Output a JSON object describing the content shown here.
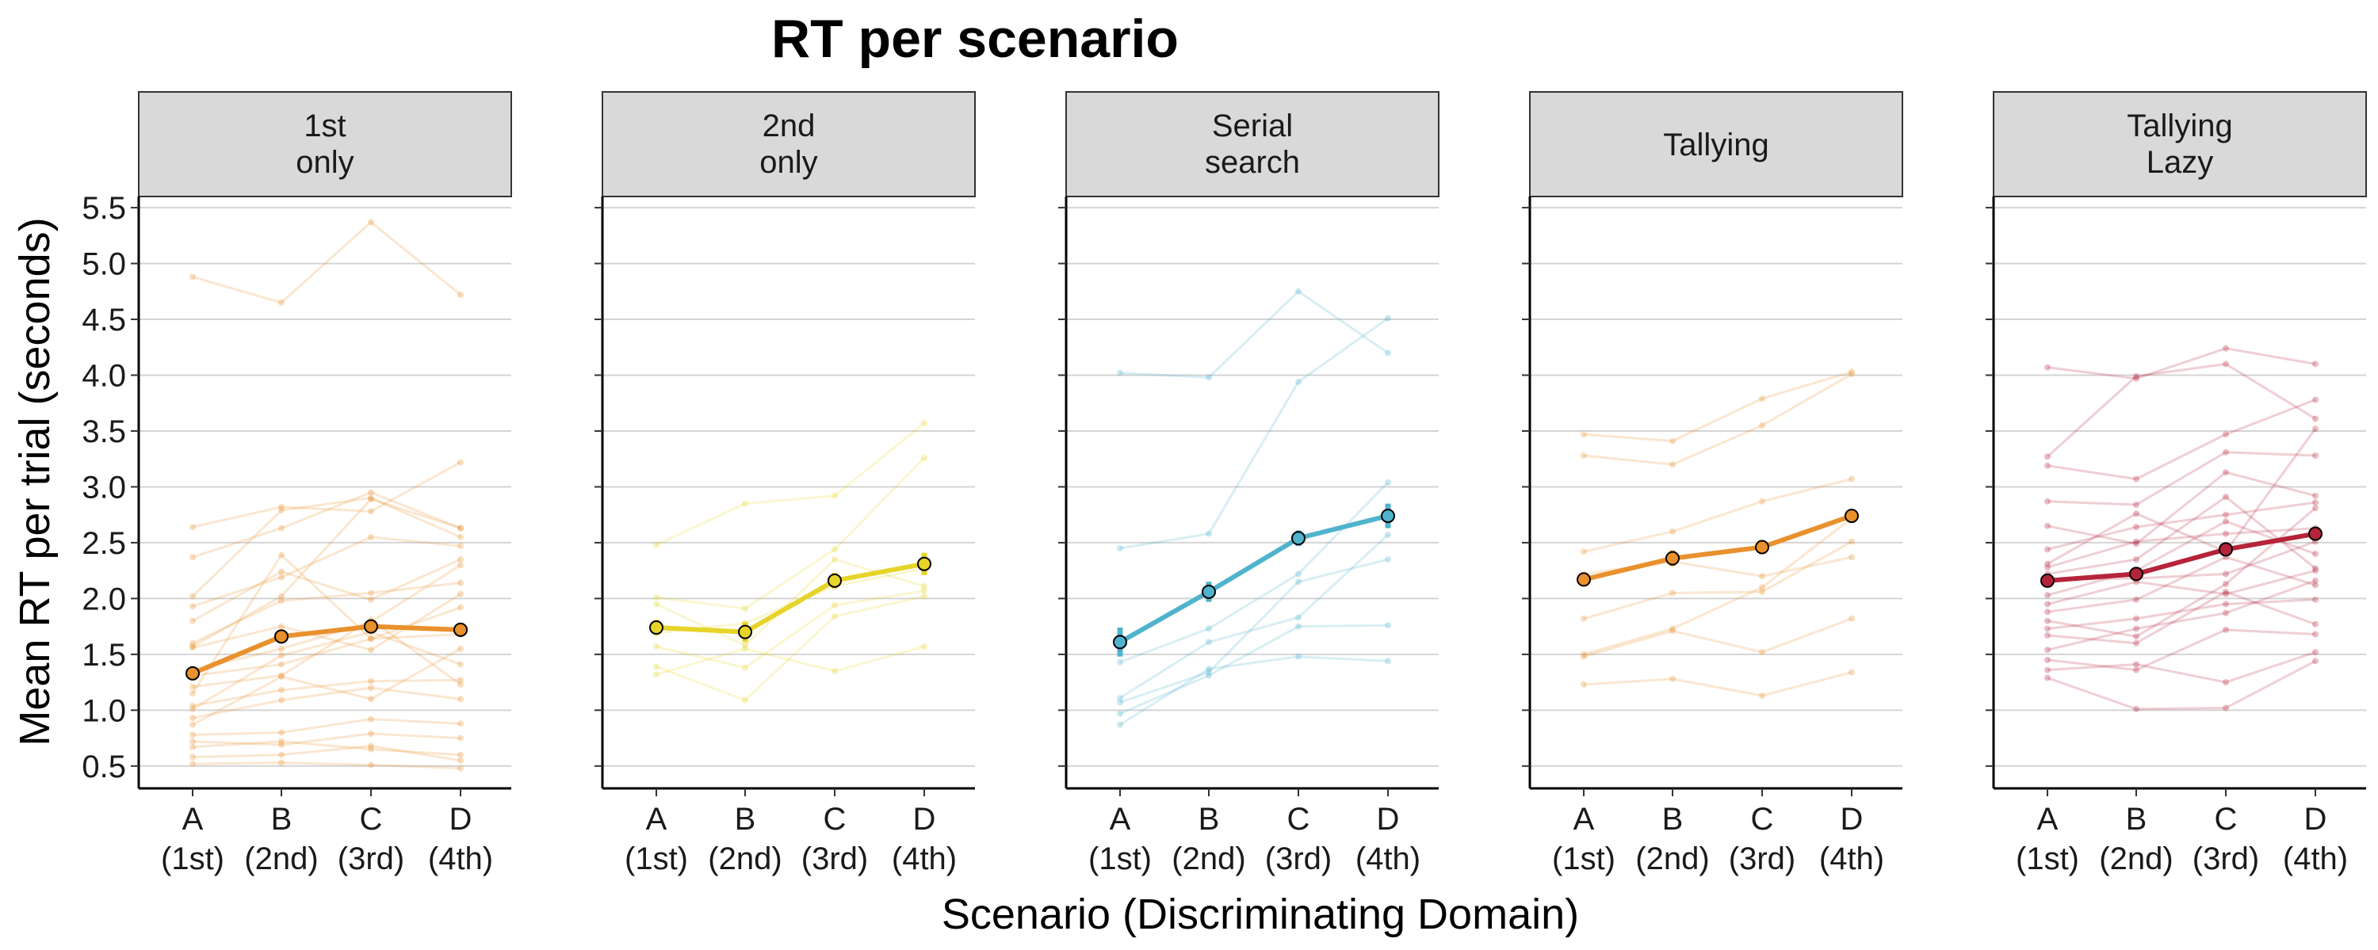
{
  "chart_data": {
    "type": "line",
    "title": "RT per scenario",
    "xlabel": "Scenario (Discriminating Domain)",
    "ylabel": "Mean RT per trial (seconds)",
    "ylim": [
      0.3,
      5.6
    ],
    "yticks": [
      "0.5",
      "1.0",
      "1.5",
      "2.0",
      "2.5",
      "3.0",
      "3.5",
      "4.0",
      "4.5",
      "5.0",
      "5.5"
    ],
    "categories": [
      "A\n(1st)",
      "B\n(2nd)",
      "C\n(3rd)",
      "D\n(4th)"
    ],
    "grid": "horizontal",
    "legend": "none",
    "panels": [
      {
        "label": "1st\nonly",
        "color": "#E8912D",
        "mean": [
          1.33,
          1.66,
          1.75,
          1.72
        ],
        "error": [
          0.06,
          0.05,
          0.06,
          0.06
        ],
        "individuals": [
          [
            4.88,
            4.65,
            5.37,
            4.72
          ],
          [
            2.64,
            2.82,
            2.78,
            3.22
          ],
          [
            2.37,
            2.63,
            2.95,
            2.63
          ],
          [
            2.02,
            2.79,
            2.9,
            2.55
          ],
          [
            1.93,
            2.19,
            2.55,
            2.47
          ],
          [
            1.8,
            2.24,
            1.99,
            2.35
          ],
          [
            1.6,
            1.98,
            2.05,
            2.14
          ],
          [
            1.57,
            2.02,
            2.89,
            2.63
          ],
          [
            1.56,
            1.75,
            1.54,
            2.04
          ],
          [
            1.36,
            1.55,
            1.79,
            2.3
          ],
          [
            1.31,
            1.41,
            1.64,
            1.92
          ],
          [
            1.21,
            1.31,
            1.81,
            1.23
          ],
          [
            1.15,
            2.39,
            1.64,
            1.68
          ],
          [
            1.04,
            1.18,
            1.26,
            1.27
          ],
          [
            1.01,
            1.49,
            1.7,
            1.41
          ],
          [
            0.93,
            1.09,
            1.2,
            1.1
          ],
          [
            0.87,
            1.3,
            1.1,
            1.55
          ],
          [
            0.78,
            0.8,
            0.92,
            0.88
          ],
          [
            0.72,
            0.69,
            0.79,
            0.75
          ],
          [
            0.67,
            0.72,
            0.65,
            0.6
          ],
          [
            0.58,
            0.6,
            0.68,
            0.55
          ],
          [
            0.52,
            0.53,
            0.51,
            0.48
          ]
        ]
      },
      {
        "label": "2nd\nonly",
        "color": "#E6D42A",
        "mean": [
          1.74,
          1.7,
          2.16,
          2.31
        ],
        "error": [
          0.07,
          0.09,
          0.07,
          0.1
        ],
        "individuals": [
          [
            2.48,
            2.85,
            2.92,
            3.57
          ],
          [
            2.01,
            1.91,
            2.44,
            3.26
          ],
          [
            1.95,
            1.58,
            2.35,
            2.11
          ],
          [
            1.69,
            1.78,
            2.11,
            2.27
          ],
          [
            1.57,
            1.38,
            1.94,
            2.07
          ],
          [
            1.39,
            1.09,
            1.84,
            2.02
          ],
          [
            1.32,
            1.55,
            1.35,
            1.57
          ]
        ]
      },
      {
        "label": "Serial\nsearch",
        "color": "#4FB3CC",
        "mean": [
          1.61,
          2.06,
          2.54,
          2.74
        ],
        "error": [
          0.13,
          0.09,
          0.07,
          0.11
        ],
        "individuals": [
          [
            4.02,
            3.98,
            4.75,
            4.2
          ],
          [
            2.45,
            2.58,
            3.94,
            4.51
          ],
          [
            1.43,
            1.73,
            2.22,
            3.04
          ],
          [
            1.11,
            1.61,
            1.83,
            2.57
          ],
          [
            1.07,
            1.34,
            2.15,
            2.35
          ],
          [
            0.97,
            1.31,
            1.75,
            1.76
          ],
          [
            0.87,
            1.37,
            1.48,
            1.44
          ]
        ]
      },
      {
        "label": "Tallying",
        "color": "#E8912D",
        "mean": [
          2.17,
          2.36,
          2.46,
          2.74
        ],
        "error": [
          0.05,
          0.07,
          0.04,
          0.05
        ],
        "individuals": [
          [
            3.47,
            3.41,
            3.79,
            4.03
          ],
          [
            3.28,
            3.2,
            3.55,
            4.01
          ],
          [
            2.42,
            2.6,
            2.87,
            3.07
          ],
          [
            2.22,
            2.33,
            2.2,
            2.37
          ],
          [
            1.82,
            2.05,
            2.06,
            2.51
          ],
          [
            1.5,
            1.73,
            2.1,
            2.72
          ],
          [
            1.48,
            1.71,
            1.52,
            1.82
          ],
          [
            1.23,
            1.28,
            1.13,
            1.34
          ]
        ]
      },
      {
        "label": "Tallying\nLazy",
        "color": "#B5243A",
        "mean": [
          2.16,
          2.22,
          2.44,
          2.58
        ],
        "error": [
          0.04,
          0.04,
          0.04,
          0.05
        ],
        "individuals": [
          [
            4.07,
            3.97,
            4.24,
            4.1
          ],
          [
            3.27,
            3.99,
            4.1,
            3.61
          ],
          [
            3.19,
            3.07,
            3.47,
            3.78
          ],
          [
            2.87,
            2.84,
            3.31,
            3.28
          ],
          [
            2.65,
            2.49,
            3.13,
            2.92
          ],
          [
            2.44,
            2.64,
            2.75,
            2.86
          ],
          [
            2.31,
            2.76,
            2.42,
            3.52
          ],
          [
            2.28,
            2.51,
            2.58,
            2.63
          ],
          [
            2.22,
            2.35,
            2.91,
            2.27
          ],
          [
            2.17,
            2.18,
            2.22,
            2.51
          ],
          [
            2.03,
            2.25,
            2.69,
            2.4
          ],
          [
            1.95,
            2.15,
            2.04,
            2.25
          ],
          [
            1.88,
            1.99,
            2.37,
            2.12
          ],
          [
            1.8,
            1.66,
            2.13,
            2.81
          ],
          [
            1.73,
            1.82,
            1.95,
            1.99
          ],
          [
            1.67,
            1.6,
            2.06,
            1.77
          ],
          [
            1.54,
            1.73,
            1.87,
            2.16
          ],
          [
            1.45,
            1.36,
            1.72,
            1.68
          ],
          [
            1.36,
            1.41,
            1.25,
            1.52
          ],
          [
            1.29,
            1.01,
            1.02,
            1.44
          ]
        ]
      }
    ]
  }
}
